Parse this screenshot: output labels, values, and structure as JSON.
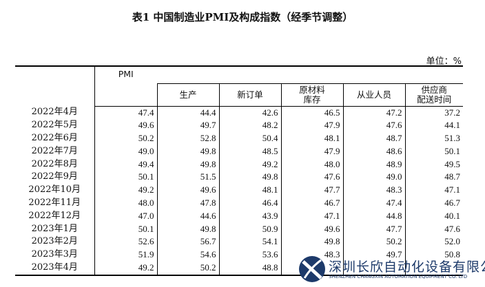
{
  "title": "表1 中国制造业PMI及构成指数（经季节调整）",
  "unit": "单位：%",
  "columns": [
    "PMI",
    "生产",
    "新订单",
    "原材料\n库存",
    "从业人员",
    "供应商\n配送时间"
  ],
  "columns_display": {
    "pmi": "PMI",
    "production": "生产",
    "new_orders": "新订单",
    "raw_line1": "原材料",
    "raw_line2": "库存",
    "employment": "从业人员",
    "supplier_line1": "供应商",
    "supplier_line2": "配送时间"
  },
  "rows": [
    {
      "month": "2022年4月",
      "values": [
        "47.4",
        "44.4",
        "42.6",
        "46.5",
        "47.2",
        "37.2"
      ]
    },
    {
      "month": "2022年5月",
      "values": [
        "49.6",
        "49.7",
        "48.2",
        "47.9",
        "47.6",
        "44.1"
      ]
    },
    {
      "month": "2022年6月",
      "values": [
        "50.2",
        "52.8",
        "50.4",
        "48.1",
        "48.7",
        "51.3"
      ]
    },
    {
      "month": "2022年7月",
      "values": [
        "49.0",
        "49.8",
        "48.5",
        "47.9",
        "48.6",
        "50.1"
      ]
    },
    {
      "month": "2022年8月",
      "values": [
        "49.4",
        "49.8",
        "49.2",
        "48.0",
        "48.9",
        "49.5"
      ]
    },
    {
      "month": "2022年9月",
      "values": [
        "50.1",
        "51.5",
        "49.8",
        "47.6",
        "49.0",
        "48.7"
      ]
    },
    {
      "month": "2022年10月",
      "values": [
        "49.2",
        "49.6",
        "48.1",
        "47.7",
        "48.3",
        "47.1"
      ]
    },
    {
      "month": "2022年11月",
      "values": [
        "48.0",
        "47.8",
        "46.4",
        "46.7",
        "47.4",
        "46.7"
      ]
    },
    {
      "month": "2022年12月",
      "values": [
        "47.0",
        "44.6",
        "43.9",
        "47.1",
        "44.8",
        "40.1"
      ]
    },
    {
      "month": "2023年1月",
      "values": [
        "50.1",
        "49.8",
        "50.9",
        "49.6",
        "47.7",
        "47.6"
      ]
    },
    {
      "month": "2023年2月",
      "values": [
        "52.6",
        "56.7",
        "54.1",
        "49.8",
        "50.2",
        "52.0"
      ]
    },
    {
      "month": "2023年3月",
      "values": [
        "51.9",
        "54.6",
        "53.6",
        "48.3",
        "49.7",
        "50.8"
      ]
    },
    {
      "month": "2023年4月",
      "values": [
        "49.2",
        "50.2",
        "48.8",
        "",
        "",
        ""
      ]
    }
  ],
  "watermark": {
    "name": "深圳长欣自动化设备有限公司",
    "sub": "SHENZHEN CHANGXIN AUTOMATION EQUIPMENT CO. LTD",
    "color": "#1d3a6a"
  }
}
